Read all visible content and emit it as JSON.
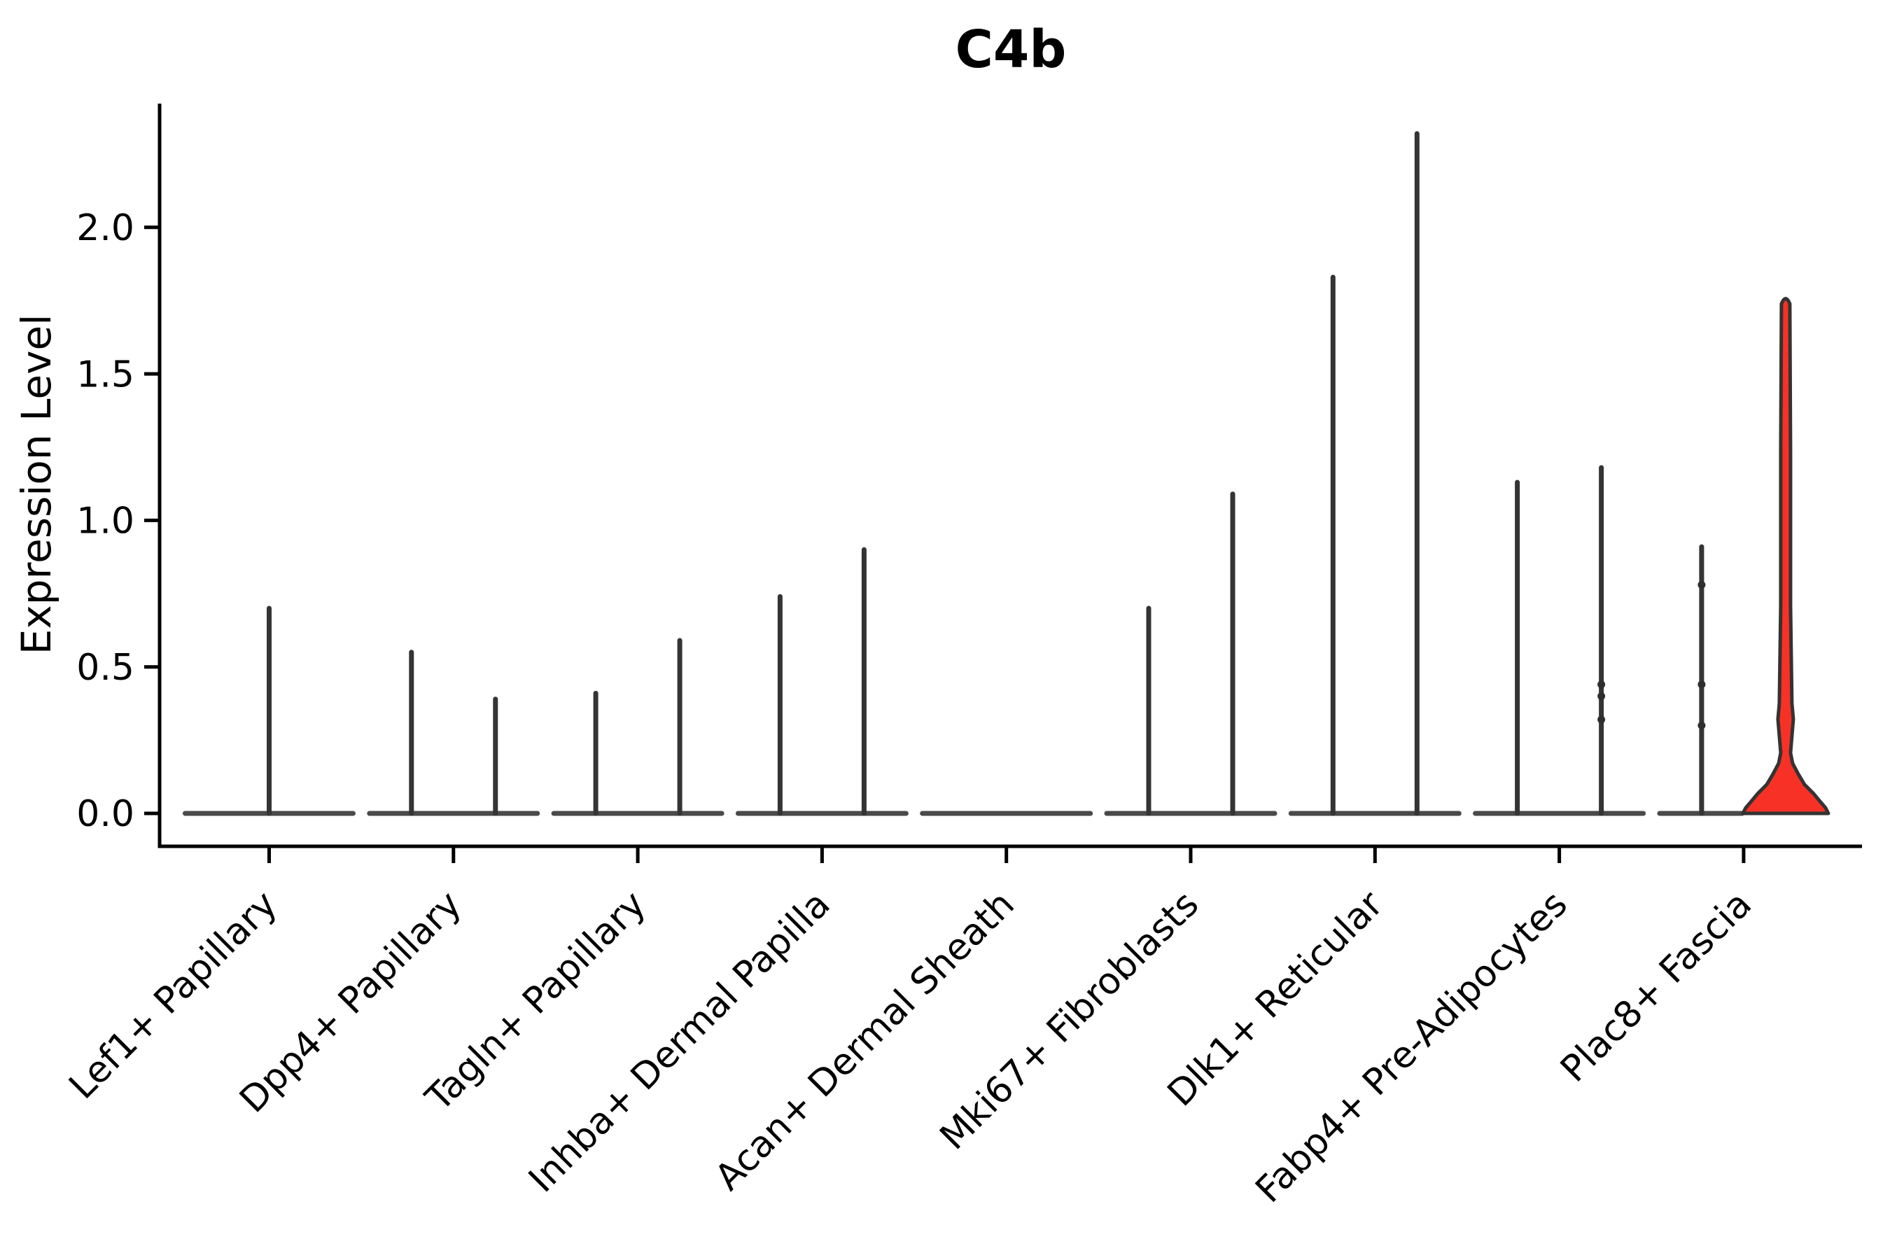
{
  "chart_data": {
    "type": "violin",
    "title": "C4b",
    "ylabel": "Expression Level",
    "xlabel": "",
    "legend": null,
    "grid": false,
    "ytick_labels": [
      "0.0",
      "0.5",
      "1.0",
      "1.5",
      "2.0"
    ],
    "ytick_values": [
      0.0,
      0.5,
      1.0,
      1.5,
      2.0
    ],
    "ylim": [
      -0.11,
      2.42
    ],
    "categories": [
      "Lef1+ Papillary",
      "Dpp4+ Papillary",
      "Tagln+ Papillary",
      "Inhba+ Dermal Papilla",
      "Acan+ Dermal Sheath",
      "Mki67+ Fibroblasts",
      "Dlk1+ Reticular",
      "Fabp4+ Pre-Adipocytes",
      "Plac8+ Fascia"
    ],
    "violins": [
      {
        "category": "Lef1+ Papillary",
        "base_at_zero": true,
        "spikes": [
          {
            "position": "center",
            "max": 0.7,
            "dots": []
          }
        ]
      },
      {
        "category": "Dpp4+ Papillary",
        "base_at_zero": true,
        "spikes": [
          {
            "position": "left",
            "max": 0.55,
            "dots": []
          },
          {
            "position": "right",
            "max": 0.39,
            "dots": []
          }
        ]
      },
      {
        "category": "Tagln+ Papillary",
        "base_at_zero": true,
        "spikes": [
          {
            "position": "left",
            "max": 0.41,
            "dots": []
          },
          {
            "position": "right",
            "max": 0.59,
            "dots": []
          }
        ]
      },
      {
        "category": "Inhba+ Dermal Papilla",
        "base_at_zero": true,
        "spikes": [
          {
            "position": "left",
            "max": 0.74,
            "dots": []
          },
          {
            "position": "right",
            "max": 0.9,
            "dots": []
          }
        ]
      },
      {
        "category": "Acan+ Dermal Sheath",
        "base_at_zero": true,
        "spikes": []
      },
      {
        "category": "Mki67+ Fibroblasts",
        "base_at_zero": true,
        "spikes": [
          {
            "position": "left",
            "max": 0.7,
            "dots": []
          },
          {
            "position": "right",
            "max": 1.09,
            "dots": []
          }
        ]
      },
      {
        "category": "Dlk1+ Reticular",
        "base_at_zero": true,
        "spikes": [
          {
            "position": "left",
            "max": 1.83,
            "dots": []
          },
          {
            "position": "right",
            "max": 2.32,
            "dots": []
          }
        ]
      },
      {
        "category": "Fabp4+ Pre-Adipocytes",
        "base_at_zero": true,
        "spikes": [
          {
            "position": "left",
            "max": 1.13,
            "dots": []
          },
          {
            "position": "right",
            "max": 1.18,
            "dots": [
              0.44,
              0.4,
              0.32
            ]
          }
        ]
      },
      {
        "category": "Plac8+ Fascia",
        "base_at_zero": true,
        "spikes": [
          {
            "position": "left",
            "max": 0.91,
            "dots": [
              0.78,
              0.44,
              0.3
            ]
          }
        ],
        "filled_violin": {
          "position": "right",
          "max": 1.77
        }
      }
    ],
    "colors": {
      "spike": "#343434",
      "base_line": "#4a4a4a",
      "jitter_dot": "#2e2e2e",
      "axis": "#000000",
      "highlight_fill": "#f83126",
      "highlight_outline": "#333333",
      "background": "#ffffff"
    }
  }
}
